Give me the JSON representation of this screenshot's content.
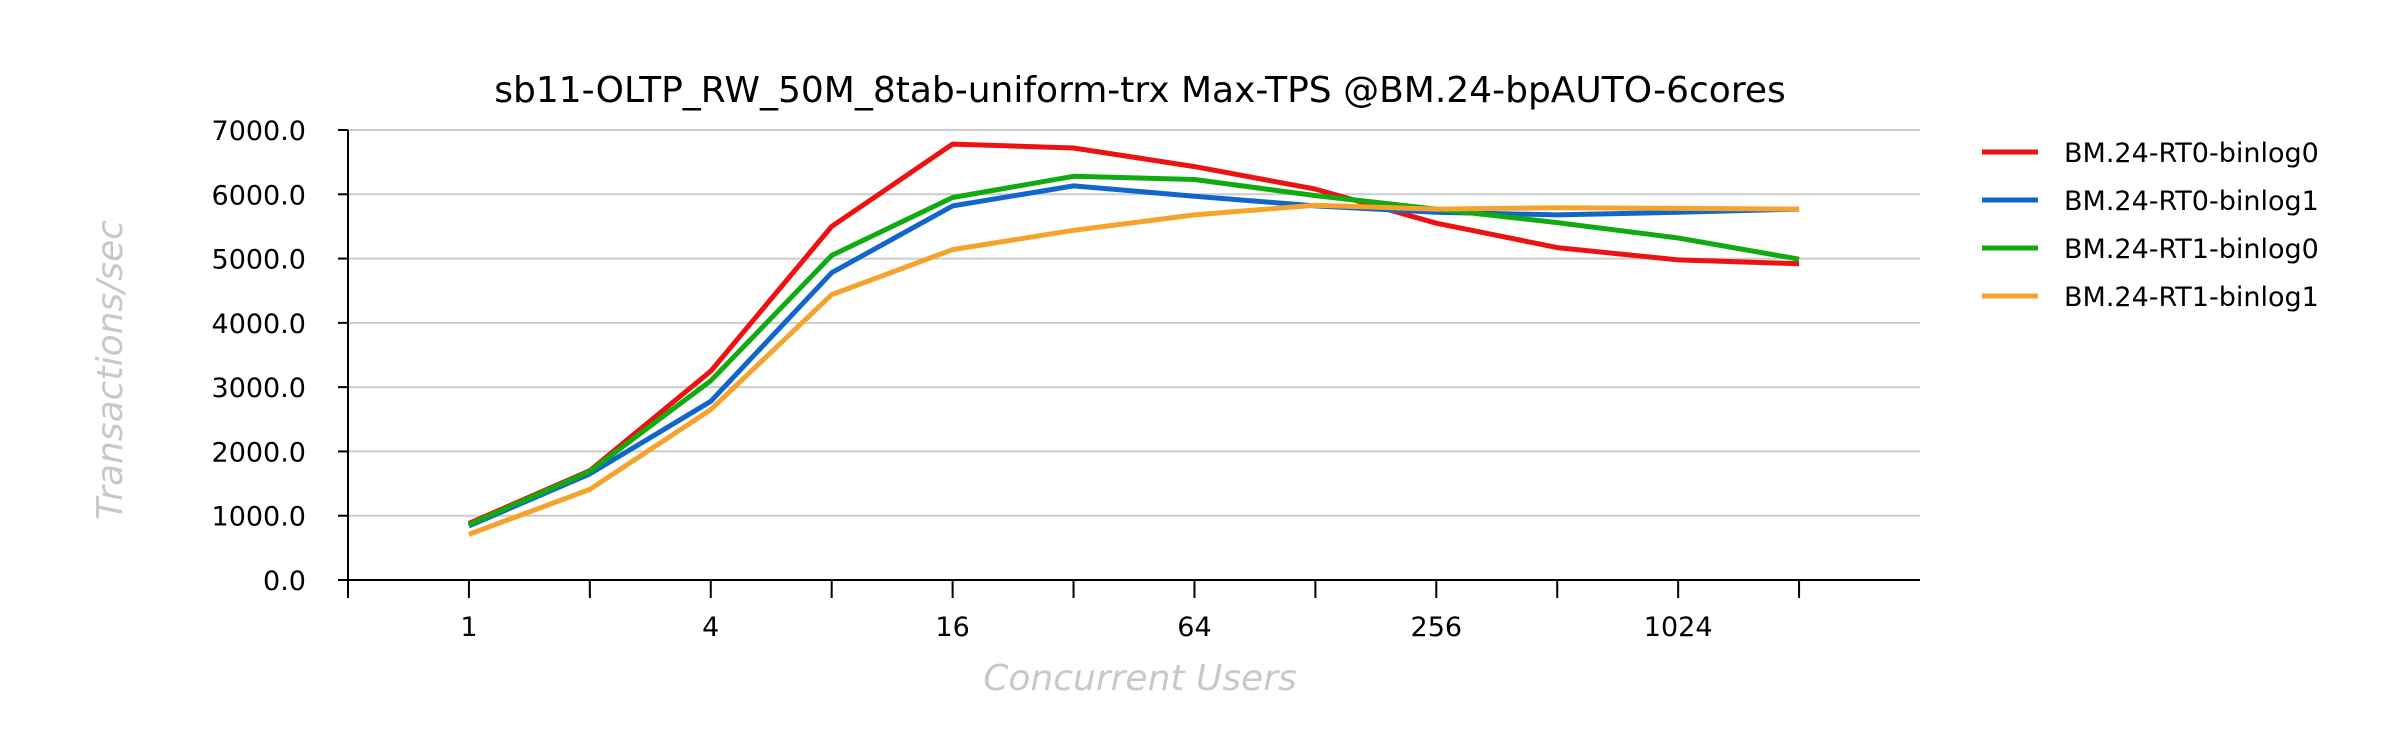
{
  "chart_data": {
    "type": "line",
    "title": "sb11-OLTP_RW_50M_8tab-uniform-trx Max-TPS @BM.24-bpAUTO-6cores",
    "xlabel": "Concurrent Users",
    "ylabel": "Transactions/sec",
    "x_scale": "log2",
    "x": [
      1,
      2,
      4,
      8,
      16,
      32,
      64,
      128,
      256,
      512,
      1024,
      2048
    ],
    "x_tick_labels": [
      "1",
      "4",
      "16",
      "64",
      "256",
      "1024"
    ],
    "x_labeled_ticks": [
      1,
      4,
      16,
      64,
      256,
      1024
    ],
    "x_range": [
      0.5,
      4096
    ],
    "ylim": [
      0,
      7000
    ],
    "y_ticks": [
      0,
      1000,
      2000,
      3000,
      4000,
      5000,
      6000,
      7000
    ],
    "y_tick_labels": [
      "0.0",
      "1000.0",
      "2000.0",
      "3000.0",
      "4000.0",
      "5000.0",
      "6000.0",
      "7000.0"
    ],
    "grid": true,
    "legend_position": "right",
    "series": [
      {
        "name": "BM.24-RT0-binlog0",
        "color": "#ee1111",
        "values": [
          880,
          1700,
          3250,
          5500,
          6780,
          6720,
          6430,
          6080,
          5550,
          5170,
          4980,
          4920
        ]
      },
      {
        "name": "BM.24-RT0-binlog1",
        "color": "#1166cc",
        "values": [
          840,
          1650,
          2780,
          4780,
          5820,
          6130,
          5970,
          5820,
          5720,
          5680,
          5720,
          5770
        ]
      },
      {
        "name": "BM.24-RT1-binlog0",
        "color": "#11aa11",
        "values": [
          860,
          1690,
          3100,
          5050,
          5950,
          6280,
          6230,
          5980,
          5770,
          5560,
          5320,
          4990
        ]
      },
      {
        "name": "BM.24-RT1-binlog1",
        "color": "#f6a32e",
        "values": [
          710,
          1410,
          2650,
          4440,
          5140,
          5440,
          5680,
          5830,
          5770,
          5790,
          5780,
          5770
        ]
      }
    ]
  }
}
